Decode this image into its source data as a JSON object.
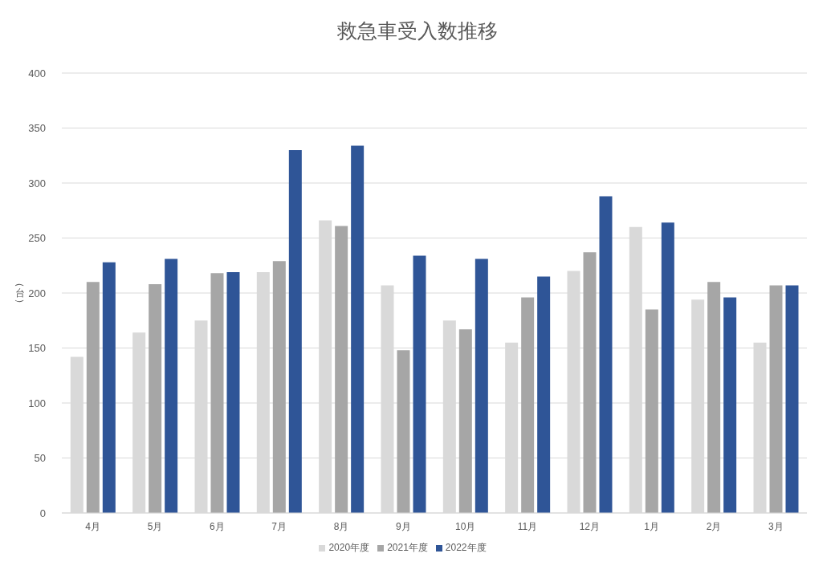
{
  "chart_data": {
    "type": "bar",
    "title": "救急車受入数推移",
    "ylabel": "（台）",
    "categories": [
      "4月",
      "5月",
      "6月",
      "7月",
      "8月",
      "9月",
      "10月",
      "11月",
      "12月",
      "1月",
      "2月",
      "3月"
    ],
    "series": [
      {
        "name": "2020年度",
        "color": "#d9d9d9",
        "values": [
          142,
          164,
          175,
          219,
          266,
          207,
          175,
          155,
          220,
          260,
          194,
          155
        ]
      },
      {
        "name": "2021年度",
        "color": "#a6a6a6",
        "values": [
          210,
          208,
          218,
          229,
          261,
          148,
          167,
          196,
          237,
          185,
          210,
          207
        ]
      },
      {
        "name": "2022年度",
        "color": "#2f5597",
        "values": [
          228,
          231,
          219,
          330,
          334,
          234,
          231,
          215,
          288,
          264,
          196,
          207
        ]
      }
    ],
    "ylim": [
      0,
      400
    ],
    "yticks": [
      0,
      50,
      100,
      150,
      200,
      250,
      300,
      350,
      400
    ],
    "grid": "y",
    "legend": "bottom"
  }
}
